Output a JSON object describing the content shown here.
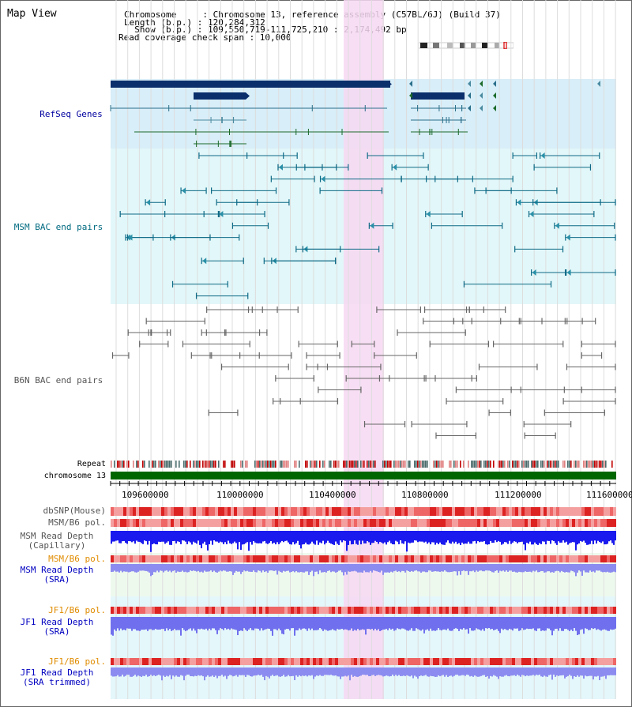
{
  "title": "Map View",
  "header": {
    "chromosome_label": "Chromosome     : Chromosome 13, reference assembly (C57BL/6J) (Build 37)",
    "length_label": "Length (b.p.) : 120,284,312",
    "show_label": "  Show (b.p.) : 109,550,719-111,725,210 : 2,174,492 bp",
    "coverage_label": "Read coverage check span : 10,000"
  },
  "tracks": {
    "refseq": "RefSeq Genes",
    "msm_bac": "MSM BAC end pairs",
    "b6n_bac": "B6N BAC end pairs",
    "repeat": "Repeat",
    "chromosome": "chromosome 13",
    "dbsnp": "dbSNP(Mouse)",
    "msm_b6_pol_1": "MSM/B6 pol.",
    "msm_read_depth_cap": "MSM Read Depth\n(Capillary)",
    "msm_b6_pol_2": "MSM/B6 pol.",
    "msm_read_depth_sra": "MSM Read Depth\n(SRA)",
    "jf1_b6_pol_1": "JF1/B6 pol.",
    "jf1_read_depth_sra": "JF1 Read Depth\n(SRA)",
    "jf1_b6_pol_2": "JF1/B6 pol.",
    "jf1_read_depth_trim": "JF1 Read Depth\n(SRA trimmed)"
  },
  "axis": {
    "ticks": [
      "109600000",
      "110000000",
      "110400000",
      "110800000",
      "111200000",
      "111600000"
    ]
  },
  "colors": {
    "refseq_bg": "#d8eef8",
    "bac_bg": "#e2f7f9",
    "highlight": "#f7d8f2",
    "msm_label": "#006a80",
    "refseq_label": "#0000a0",
    "b6n_label": "#555555",
    "orange_label": "#e08c00",
    "blue_label": "#0000c0",
    "chromosome_green": "#006600"
  }
}
